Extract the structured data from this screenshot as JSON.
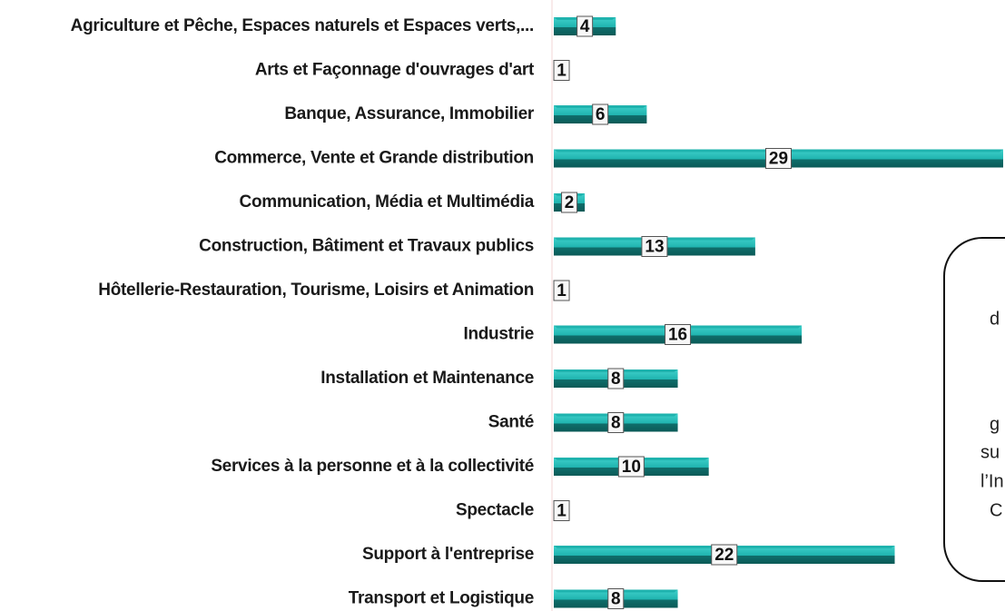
{
  "chart_data": {
    "type": "barh",
    "categories": [
      "Agriculture et Pêche, Espaces naturels et Espaces verts,...",
      "Arts et Façonnage d'ouvrages d'art",
      "Banque, Assurance, Immobilier",
      "Commerce, Vente et Grande distribution",
      "Communication, Média et Multimédia",
      "Construction, Bâtiment et Travaux publics",
      "Hôtellerie-Restauration, Tourisme, Loisirs et Animation",
      "Industrie",
      "Installation et Maintenance",
      "Santé",
      "Services à la personne et à la collectivité",
      "Spectacle",
      "Support à l'entreprise",
      "Transport et Logistique"
    ],
    "values": [
      4,
      1,
      6,
      29,
      2,
      13,
      1,
      16,
      8,
      8,
      10,
      1,
      22,
      8
    ],
    "color": "#1fb3ae",
    "annotation_lines": [
      "d",
      "g",
      "su",
      "l’In",
      "C"
    ]
  }
}
